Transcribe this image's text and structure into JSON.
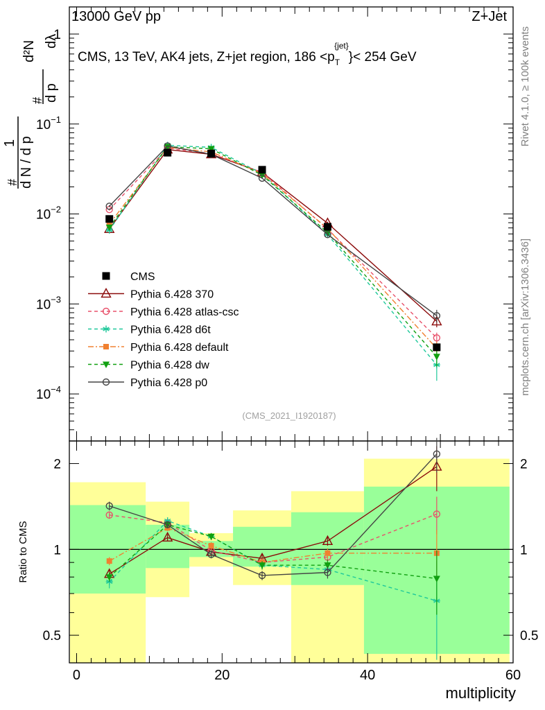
{
  "header": {
    "left": "13000 GeV pp",
    "right": "Z+Jet"
  },
  "side_text": {
    "rivet": "Rivet 4.1.0, ≥ 100k events",
    "mcplots": "mcplots.cern.ch [arXiv:1306.3436]"
  },
  "top_ylabel": "1/N dN/dpT  d²N/dpT dλ",
  "top_ylabel_parts": {
    "one": "1",
    "num_hash": "#",
    "den": "d N / d p",
    "dsq": "d²N",
    "dpt": "d p",
    "dlam": "dλ",
    "sub_t": "T"
  },
  "colors": {
    "CMS": "#000000",
    "p370": "#8b0a0a",
    "atlas": "#e8506a",
    "d6t": "#1ec89a",
    "default": "#f08030",
    "dw": "#10a010",
    "p0": "#444444",
    "band_yellow": "#ffff99",
    "band_green": "#99ff99"
  },
  "chart_data": [
    {
      "type": "line",
      "panel": "main",
      "title": "CMS, 13 TeV, AK4 jets, Z+jet region, 186 <pT{jet}< 254 GeV",
      "title_parts": {
        "main": "CMS, 13 TeV, AK4 jets, Z+jet region, 186 <p",
        "sub": "T",
        "sup": "{jet}",
        "tail": "}< 254 GeV"
      },
      "watermark": "(CMS_2021_I1920187)",
      "yscale": "log",
      "ylim": [
        3e-05,
        2
      ],
      "xlim": [
        -1,
        60
      ],
      "yticks": [
        {
          "value": 1,
          "base": "1",
          "exp": ""
        },
        {
          "value": 0.1,
          "base": "10",
          "exp": "−1"
        },
        {
          "value": 0.01,
          "base": "10",
          "exp": "−2"
        },
        {
          "value": 0.001,
          "base": "10",
          "exp": "−3"
        },
        {
          "value": 0.0001,
          "base": "10",
          "exp": "−4"
        }
      ],
      "x": [
        4.5,
        12.5,
        18.5,
        25.5,
        34.5,
        49.5
      ],
      "series": [
        {
          "name": "CMS",
          "key": "CMS",
          "marker": "square",
          "line": "none",
          "values": [
            0.0088,
            0.048,
            0.047,
            0.031,
            0.0072,
            0.00033
          ],
          "errors": [
            0.0005,
            0.002,
            0.002,
            0.0015,
            0.0004,
            3e-05
          ]
        },
        {
          "name": "Pythia 6.428 370",
          "key": "p370",
          "marker": "triangle-open",
          "line": "solid",
          "values": [
            0.0068,
            0.052,
            0.046,
            0.029,
            0.0079,
            0.00064
          ],
          "errors": [
            0.0002,
            0.0005,
            0.0005,
            0.0004,
            0.0003,
            9e-05
          ]
        },
        {
          "name": "Pythia 6.428 atlas-csc",
          "key": "atlas",
          "marker": "circle-open",
          "line": "dashed",
          "values": [
            0.0112,
            0.054,
            0.047,
            0.029,
            0.0068,
            0.00042
          ],
          "errors": [
            0.0003,
            0.0005,
            0.0005,
            0.0004,
            0.0003,
            6e-05
          ]
        },
        {
          "name": "Pythia 6.428 d6t",
          "key": "d6t",
          "marker": "star",
          "line": "dashed",
          "values": [
            0.0066,
            0.058,
            0.055,
            0.028,
            0.0059,
            0.00021
          ],
          "errors": [
            0.0002,
            0.0005,
            0.0005,
            0.0004,
            0.0003,
            7e-05
          ]
        },
        {
          "name": "Pythia 6.428 default",
          "key": "default",
          "marker": "square-filled",
          "line": "dashdot",
          "values": [
            0.0077,
            0.055,
            0.049,
            0.028,
            0.0069,
            0.00032
          ],
          "errors": [
            0.0002,
            0.0005,
            0.0005,
            0.0004,
            0.0003,
            6e-05
          ]
        },
        {
          "name": "Pythia 6.428 dw",
          "key": "dw",
          "marker": "triangle-down",
          "line": "dashed",
          "values": [
            0.0071,
            0.056,
            0.053,
            0.027,
            0.0062,
            0.00026
          ],
          "errors": [
            0.0002,
            0.0005,
            0.0005,
            0.0004,
            0.0003,
            6e-05
          ]
        },
        {
          "name": "Pythia 6.428 p0",
          "key": "p0",
          "marker": "circle-open",
          "line": "solid",
          "values": [
            0.0122,
            0.057,
            0.046,
            0.025,
            0.0059,
            0.00074
          ],
          "errors": [
            0.0003,
            0.0005,
            0.0005,
            0.0004,
            0.0003,
            0.00012
          ]
        }
      ]
    },
    {
      "type": "line",
      "panel": "ratio",
      "ylabel": "Ratio to CMS",
      "xlabel": "multiplicity",
      "yscale": "log",
      "ylim": [
        0.4,
        2.4
      ],
      "xlim": [
        -1,
        60
      ],
      "xticks": [
        0,
        20,
        40,
        60
      ],
      "yticks": [
        {
          "value": 0.5,
          "label": "0.5"
        },
        {
          "value": 1,
          "label": "1"
        },
        {
          "value": 2,
          "label": "2"
        }
      ],
      "bands": [
        {
          "x0": -1,
          "x1": 9.5,
          "yellow": [
            0.4,
            1.72
          ],
          "green": [
            0.7,
            1.43
          ]
        },
        {
          "x0": 9.5,
          "x1": 15.5,
          "yellow": [
            0.68,
            1.47
          ],
          "green": [
            0.86,
            1.22
          ]
        },
        {
          "x0": 15.5,
          "x1": 21.5,
          "yellow": [
            0.87,
            1.14
          ],
          "green": [
            0.94,
            1.07
          ]
        },
        {
          "x0": 21.5,
          "x1": 29.5,
          "yellow": [
            0.75,
            1.37
          ],
          "green": [
            0.87,
            1.2
          ]
        },
        {
          "x0": 29.5,
          "x1": 39.5,
          "yellow": [
            0.4,
            1.6
          ],
          "green": [
            0.75,
            1.35
          ]
        },
        {
          "x0": 39.5,
          "x1": 59.5,
          "yellow": [
            0.4,
            2.08
          ],
          "green": [
            0.43,
            1.66
          ]
        }
      ],
      "x": [
        4.5,
        12.5,
        18.5,
        25.5,
        34.5,
        49.5
      ],
      "series": [
        {
          "name": "Pythia 6.428 370",
          "key": "p370",
          "marker": "triangle-open",
          "line": "solid",
          "values": [
            0.82,
            1.1,
            0.98,
            0.93,
            1.07,
            1.95
          ],
          "errors": [
            0.03,
            0.03,
            0.03,
            0.03,
            0.04,
            0.35
          ]
        },
        {
          "name": "Pythia 6.428 atlas-csc",
          "key": "atlas",
          "marker": "circle-open",
          "line": "dashed",
          "values": [
            1.32,
            1.24,
            0.99,
            0.9,
            0.94,
            1.33
          ],
          "errors": [
            0.04,
            0.03,
            0.03,
            0.03,
            0.04,
            0.2
          ]
        },
        {
          "name": "Pythia 6.428 d6t",
          "key": "d6t",
          "marker": "star",
          "line": "dashed",
          "values": [
            0.77,
            1.26,
            1.11,
            0.88,
            0.85,
            0.66
          ],
          "errors": [
            0.04,
            0.03,
            0.03,
            0.03,
            0.04,
            0.25
          ]
        },
        {
          "name": "Pythia 6.428 default",
          "key": "default",
          "marker": "square-filled",
          "line": "dashdot",
          "values": [
            0.91,
            1.19,
            1.03,
            0.9,
            0.97,
            0.97
          ],
          "errors": [
            0.03,
            0.03,
            0.03,
            0.03,
            0.04,
            0.2
          ]
        },
        {
          "name": "Pythia 6.428 dw",
          "key": "dw",
          "marker": "triangle-down",
          "line": "dashed",
          "values": [
            0.8,
            1.22,
            1.11,
            0.88,
            0.88,
            0.79
          ],
          "errors": [
            0.03,
            0.03,
            0.03,
            0.03,
            0.04,
            0.2
          ]
        },
        {
          "name": "Pythia 6.428 p0",
          "key": "p0",
          "marker": "circle-open",
          "line": "solid",
          "values": [
            1.42,
            1.22,
            0.96,
            0.81,
            0.83,
            2.16
          ],
          "errors": [
            0.05,
            0.03,
            0.03,
            0.03,
            0.04,
            0.3
          ]
        }
      ]
    }
  ],
  "legend": [
    "CMS",
    "Pythia 6.428 370",
    "Pythia 6.428 atlas-csc",
    "Pythia 6.428 d6t",
    "Pythia 6.428 default",
    "Pythia 6.428 dw",
    "Pythia 6.428 p0"
  ]
}
